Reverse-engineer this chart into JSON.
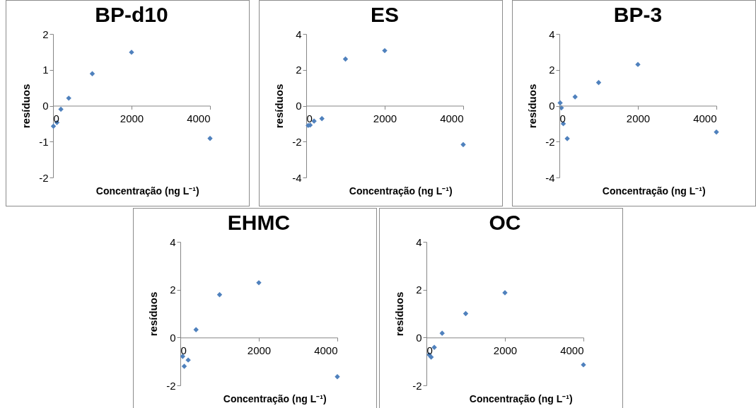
{
  "chart_data": [
    {
      "type": "scatter",
      "title": "BP-d10",
      "xlabel": "Concentração (ng L⁻¹)",
      "ylabel": "resíduos",
      "marker": "diamond",
      "x": [
        10,
        100,
        200,
        400,
        1000,
        2000,
        4000
      ],
      "xlim": [
        0,
        4000
      ],
      "xticks": [
        0,
        2000,
        4000
      ],
      "ylim": [
        -2,
        2
      ],
      "yticks": [
        -2,
        -1,
        0,
        1,
        2
      ],
      "series": [
        {
          "color": "#4f81bd",
          "values": [
            -0.57,
            -0.47,
            -0.1,
            0.21,
            0.89,
            1.49,
            -0.91
          ]
        }
      ]
    },
    {
      "type": "scatter",
      "title": "ES",
      "xlabel": "Concentração (ng L⁻¹)",
      "ylabel": "resíduos",
      "marker": "diamond",
      "x": [
        50,
        100,
        200,
        400,
        1000,
        2000,
        4000
      ],
      "xlim": [
        0,
        4000
      ],
      "xticks": [
        0,
        2000,
        4000
      ],
      "ylim": [
        -4,
        4
      ],
      "yticks": [
        -4,
        -2,
        0,
        2,
        4
      ],
      "series": [
        {
          "color": "#4f81bd",
          "values": [
            -1.1,
            -1.08,
            -0.86,
            -0.72,
            2.6,
            3.07,
            -2.17
          ]
        }
      ]
    },
    {
      "type": "scatter",
      "title": "BP-3",
      "xlabel": "Concentração (ng L⁻¹)",
      "ylabel": "resíduos",
      "marker": "diamond",
      "x": [
        20,
        50,
        100,
        200,
        400,
        1000,
        2000,
        4000
      ],
      "xlim": [
        0,
        4000
      ],
      "xticks": [
        0,
        2000,
        4000
      ],
      "ylim": [
        -4,
        4
      ],
      "yticks": [
        -4,
        -2,
        0,
        2,
        4
      ],
      "series": [
        {
          "color": "#4f81bd",
          "values": [
            0.16,
            -0.12,
            -1.0,
            -1.83,
            0.49,
            1.29,
            2.3,
            -1.47
          ]
        }
      ]
    },
    {
      "type": "scatter",
      "title": "EHMC",
      "xlabel": "Concentração (ng L⁻¹)",
      "ylabel": "resíduos",
      "marker": "diamond",
      "x": [
        60,
        100,
        200,
        400,
        1000,
        2000,
        4000
      ],
      "xlim": [
        0,
        4000
      ],
      "xticks": [
        0,
        2000,
        4000
      ],
      "ylim": [
        -2,
        4
      ],
      "yticks": [
        -2,
        0,
        2,
        4
      ],
      "series": [
        {
          "color": "#4f81bd",
          "values": [
            -0.79,
            -1.2,
            -0.94,
            0.33,
            1.79,
            2.29,
            -1.64
          ]
        }
      ]
    },
    {
      "type": "scatter",
      "title": "OC",
      "xlabel": "Concentração (ng L⁻¹)",
      "ylabel": "resíduos",
      "marker": "diamond",
      "x": [
        70,
        120,
        200,
        400,
        1000,
        2000,
        4000
      ],
      "xlim": [
        0,
        4000
      ],
      "xticks": [
        0,
        2000,
        4000
      ],
      "ylim": [
        -2,
        4
      ],
      "yticks": [
        -2,
        0,
        2,
        4
      ],
      "series": [
        {
          "color": "#4f81bd",
          "values": [
            -0.72,
            -0.82,
            -0.41,
            0.18,
            1.0,
            1.87,
            -1.14
          ]
        }
      ]
    }
  ]
}
